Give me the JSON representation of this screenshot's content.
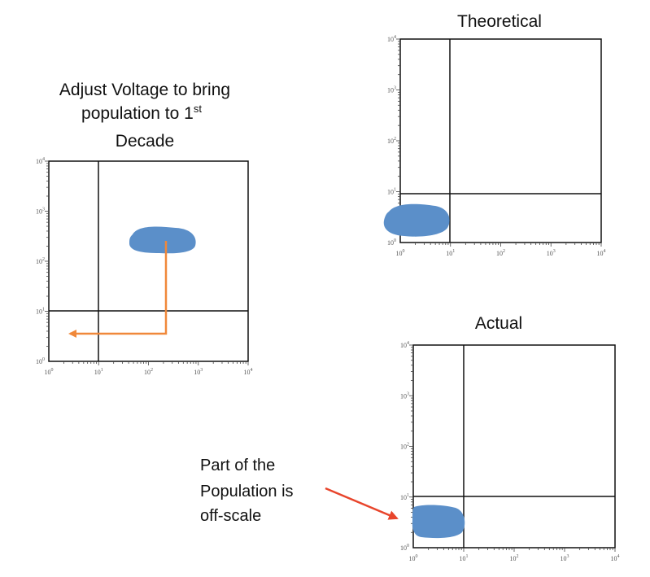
{
  "titles": {
    "left_line1": "Adjust Voltage to bring",
    "left_line2": "population to 1",
    "left_sup": "st",
    "left_line3": "Decade",
    "theoretical": "Theoretical",
    "actual": "Actual"
  },
  "note": {
    "line1": "Part of the",
    "line2": "Population is",
    "line3": "off-scale"
  },
  "axis": {
    "base": "10",
    "exponents": [
      "0",
      "1",
      "2",
      "3",
      "4"
    ]
  },
  "colors": {
    "population": "#5b8fc9",
    "voltage_arrow": "#f0883a",
    "pointer_arrow": "#e8452c",
    "axis": "#111111"
  }
}
